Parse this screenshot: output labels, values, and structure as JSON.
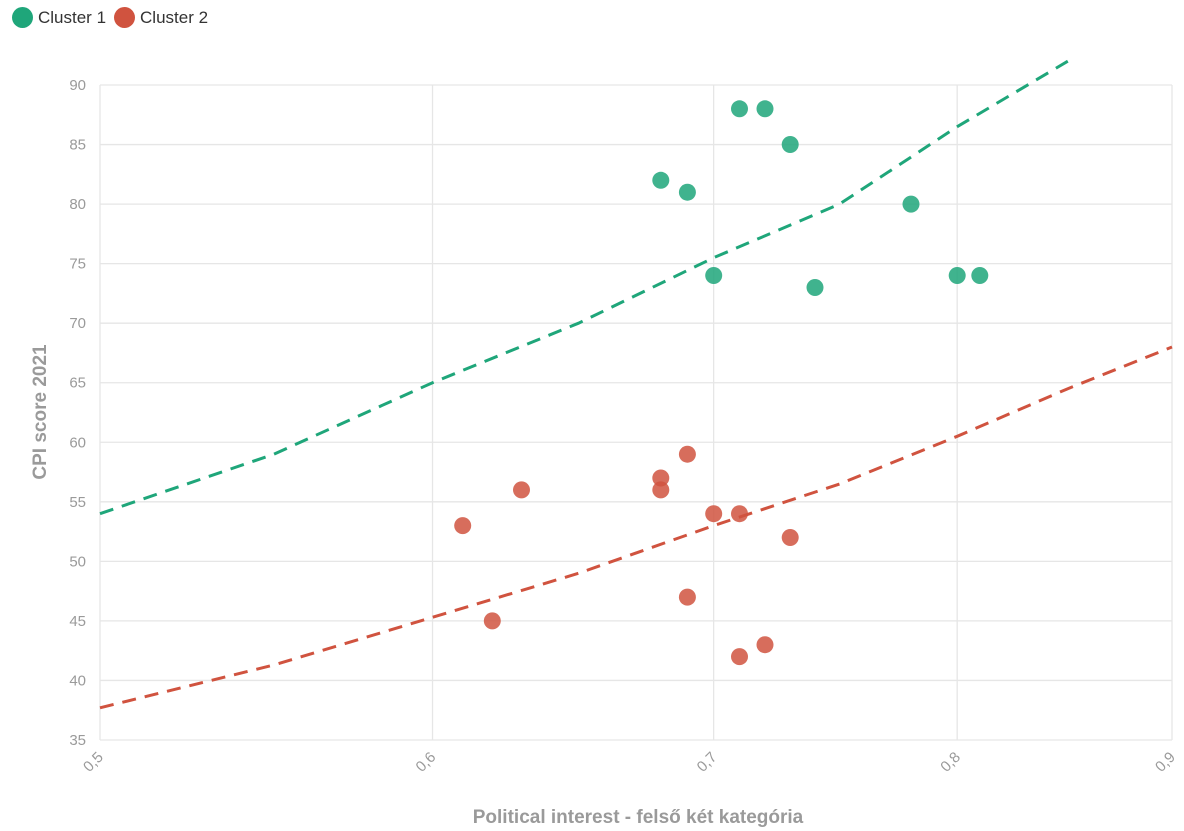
{
  "chart_data": {
    "type": "scatter",
    "xlabel": "Political interest - felső két kategória",
    "ylabel": "CPI score 2021",
    "xlim": [
      0.5,
      0.9
    ],
    "ylim": [
      35,
      90
    ],
    "x_tick_values": [
      0.5,
      0.6,
      0.7,
      0.8,
      0.9
    ],
    "x_tick_labels": [
      "0,5",
      "0,6",
      "0,7",
      "0,8",
      "0,9"
    ],
    "y_tick_values": [
      35,
      40,
      45,
      50,
      55,
      60,
      65,
      70,
      75,
      80,
      85,
      90
    ],
    "y_tick_labels": [
      "35",
      "40",
      "45",
      "50",
      "55",
      "60",
      "65",
      "70",
      "75",
      "80",
      "85",
      "90"
    ],
    "x_axis_scale": "log",
    "grid": true,
    "legend_position": "top-left",
    "series": [
      {
        "name": "Cluster 1",
        "color": "#1fa67a",
        "points": [
          {
            "x": 0.68,
            "y": 82
          },
          {
            "x": 0.69,
            "y": 81
          },
          {
            "x": 0.7,
            "y": 74
          },
          {
            "x": 0.71,
            "y": 88
          },
          {
            "x": 0.72,
            "y": 88
          },
          {
            "x": 0.73,
            "y": 85
          },
          {
            "x": 0.74,
            "y": 73
          },
          {
            "x": 0.78,
            "y": 80
          },
          {
            "x": 0.8,
            "y": 74
          },
          {
            "x": 0.81,
            "y": 74
          }
        ],
        "trendline": [
          {
            "x": 0.5,
            "y": 54
          },
          {
            "x": 0.55,
            "y": 59
          },
          {
            "x": 0.6,
            "y": 65
          },
          {
            "x": 0.65,
            "y": 70
          },
          {
            "x": 0.7,
            "y": 75.5
          },
          {
            "x": 0.75,
            "y": 80
          },
          {
            "x": 0.8,
            "y": 86.5
          },
          {
            "x": 0.85,
            "y": 92
          }
        ]
      },
      {
        "name": "Cluster 2",
        "color": "#d0533f",
        "points": [
          {
            "x": 0.61,
            "y": 53
          },
          {
            "x": 0.62,
            "y": 45
          },
          {
            "x": 0.63,
            "y": 56
          },
          {
            "x": 0.68,
            "y": 57
          },
          {
            "x": 0.68,
            "y": 56
          },
          {
            "x": 0.69,
            "y": 59
          },
          {
            "x": 0.69,
            "y": 47
          },
          {
            "x": 0.7,
            "y": 54
          },
          {
            "x": 0.71,
            "y": 54
          },
          {
            "x": 0.71,
            "y": 42
          },
          {
            "x": 0.72,
            "y": 43
          },
          {
            "x": 0.73,
            "y": 52
          }
        ],
        "trendline": [
          {
            "x": 0.5,
            "y": 37.7
          },
          {
            "x": 0.55,
            "y": 41.3
          },
          {
            "x": 0.6,
            "y": 45.3
          },
          {
            "x": 0.65,
            "y": 49
          },
          {
            "x": 0.7,
            "y": 53
          },
          {
            "x": 0.75,
            "y": 56.5
          },
          {
            "x": 0.8,
            "y": 60.5
          },
          {
            "x": 0.85,
            "y": 64.5
          },
          {
            "x": 0.9,
            "y": 68
          }
        ]
      }
    ]
  }
}
